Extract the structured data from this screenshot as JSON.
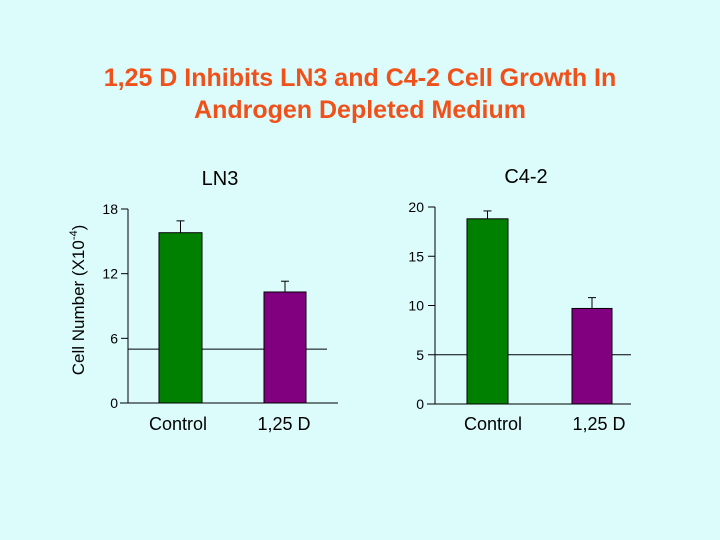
{
  "title_line1": "1,25 D Inhibits LN3 and C4-2 Cell Growth In",
  "title_line2": "Androgen Depleted Medium",
  "colors": {
    "background": "#dcfcfc",
    "title": "#f0501a",
    "control": "#008000",
    "treated": "#800080"
  },
  "chart_data": [
    {
      "type": "bar",
      "title": "LN3",
      "ylabel": "Cell Number (X10-4)",
      "ylabel_main": "Cell Number (X10",
      "ylabel_sup": "-4",
      "ylabel_end": ")",
      "ylim": [
        0,
        18
      ],
      "yticks": [
        "0",
        "6",
        "12",
        "18"
      ],
      "ytick_values": [
        0,
        6,
        12,
        18
      ],
      "categories": [
        "Control",
        "1,25 D"
      ],
      "values": [
        15.8,
        10.3
      ],
      "errors": [
        1.1,
        1.0
      ],
      "reference_line": 5.0
    },
    {
      "type": "bar",
      "title": "C4-2",
      "ylim": [
        0,
        20
      ],
      "yticks": [
        "0",
        "5",
        "10",
        "15",
        "20"
      ],
      "ytick_values": [
        0,
        5,
        10,
        15,
        20
      ],
      "categories": [
        "Control",
        "1,25 D"
      ],
      "values": [
        18.8,
        9.7
      ],
      "errors": [
        0.8,
        1.1
      ],
      "reference_line": 5.0
    }
  ]
}
